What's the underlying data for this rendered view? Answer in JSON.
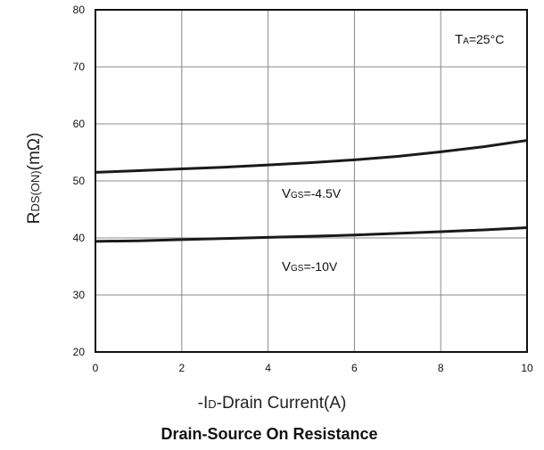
{
  "chart_data": {
    "type": "line",
    "title": "Drain-Source On Resistance",
    "xlabel": "-ID-Drain Current(A)",
    "ylabel": "RDS(ON)(mΩ)",
    "xlim": [
      0,
      10
    ],
    "ylim": [
      20,
      80
    ],
    "xticks": [
      "0",
      "2",
      "4",
      "6",
      "8",
      "10"
    ],
    "yticks": [
      "20",
      "30",
      "40",
      "50",
      "60",
      "70",
      "80"
    ],
    "grid": true,
    "series": [
      {
        "name": "VGS=-4.5V",
        "x": [
          0,
          1,
          2,
          3,
          4,
          5,
          6,
          7,
          8,
          9,
          10
        ],
        "y": [
          51.5,
          51.8,
          52.1,
          52.4,
          52.8,
          53.2,
          53.7,
          54.3,
          55.1,
          56.0,
          57.1
        ]
      },
      {
        "name": "VGS=-10V",
        "x": [
          0,
          1,
          2,
          3,
          4,
          5,
          6,
          7,
          8,
          9,
          10
        ],
        "y": [
          39.4,
          39.5,
          39.7,
          39.9,
          40.1,
          40.3,
          40.5,
          40.8,
          41.1,
          41.4,
          41.8
        ]
      }
    ],
    "annotations": {
      "temp": "TA=25°C",
      "vgs_45": "VGS=-4.5V",
      "vgs_10": "VGS=-10V"
    },
    "line_color": "#1a1a1a",
    "grid_color": "#888888"
  }
}
